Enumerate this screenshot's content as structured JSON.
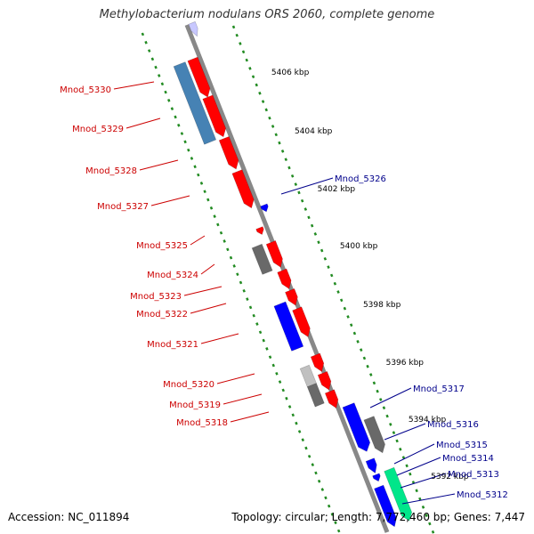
{
  "header": {
    "title": "Methylobacterium nodulans ORS 2060, complete genome"
  },
  "footer": {
    "accession": "Accession: NC_011894",
    "topology": "Topology: circular; Length: 7,772,460 bp; Genes: 7,447"
  },
  "colors": {
    "left_label": "#cc0000",
    "right_label": "#00008b",
    "axis": "#888888",
    "tick": "#228b22",
    "red_gene": "#ff0000",
    "blue_gene": "#0000ff",
    "steel_gene": "#4682b4",
    "gray_gene": "#696969",
    "green_gene": "#00e68a"
  },
  "scale_labels": [
    "5406 kbp",
    "5404 kbp",
    "5402 kbp",
    "5400 kbp",
    "5398 kbp",
    "5396 kbp",
    "5394 kbp",
    "5392 kbp"
  ],
  "left_genes": [
    "Mnod_5330",
    "Mnod_5329",
    "Mnod_5328",
    "Mnod_5327",
    "Mnod_5325",
    "Mnod_5324",
    "Mnod_5323",
    "Mnod_5322",
    "Mnod_5321",
    "Mnod_5320",
    "Mnod_5319",
    "Mnod_5318"
  ],
  "right_genes": [
    "Mnod_5326",
    "Mnod_5317",
    "Mnod_5316",
    "Mnod_5315",
    "Mnod_5314",
    "Mnod_5313",
    "Mnod_5312"
  ]
}
